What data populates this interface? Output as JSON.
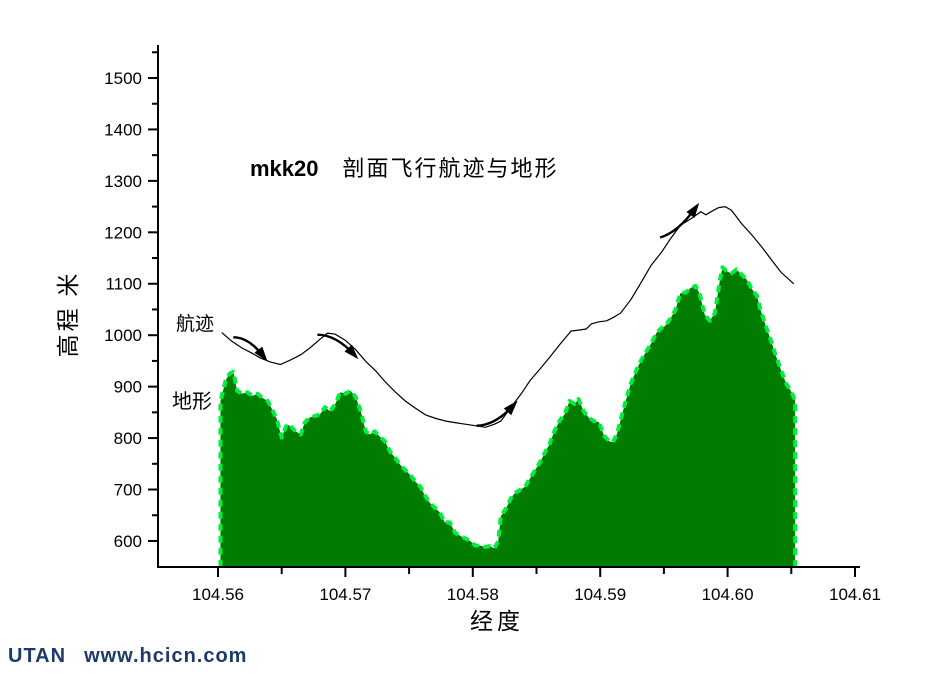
{
  "labels": {
    "title_id": "mkk20",
    "title_text": "剖面飞行航迹与地形",
    "y_axis": "高程 米",
    "x_axis": "经度",
    "series_path": "航迹",
    "series_terrain": "地形"
  },
  "watermark": {
    "brand": "UTAN",
    "url": "www.hcicn.com",
    "color": "#1d3a6b"
  },
  "chart_data": {
    "type": "area",
    "title": "mkk20 剖面飞行航迹与地形",
    "xlabel": "经度",
    "ylabel": "高程 米",
    "xlim": [
      104.555,
      104.611
    ],
    "ylim": [
      550,
      1560
    ],
    "grid": false,
    "legend": "none (inline text labels 航迹 / 地形)",
    "x_ticks": {
      "major": [
        104.56,
        104.57,
        104.58,
        104.59,
        104.6,
        104.61
      ],
      "major_labels": [
        "104.56",
        "104.57",
        "104.58",
        "104.59",
        "104.60",
        "104.61"
      ],
      "minor": [
        104.565,
        104.575,
        104.585,
        104.595,
        104.605
      ]
    },
    "y_ticks": {
      "major": [
        600,
        700,
        800,
        900,
        1000,
        1100,
        1200,
        1300,
        1400,
        1500
      ],
      "major_labels": [
        "600",
        "700",
        "800",
        "900",
        "1000",
        "1100",
        "1200",
        "1300",
        "1400",
        "1500"
      ],
      "minor": [
        650,
        750,
        850,
        950,
        1050,
        1150,
        1250,
        1350,
        1450,
        1550
      ]
    },
    "colors": {
      "terrain_fill": "#007c00",
      "terrain_edge": "#00ee3e",
      "path_line": "#000000",
      "axis": "#000000"
    },
    "series": [
      {
        "name": "地形",
        "type": "area",
        "baseline": 550,
        "edge_style": "dashed",
        "points": [
          [
            104.5602,
            872
          ],
          [
            104.5606,
            912
          ],
          [
            104.5609,
            925
          ],
          [
            104.5612,
            929
          ],
          [
            104.5615,
            892
          ],
          [
            104.5619,
            886
          ],
          [
            104.5623,
            889
          ],
          [
            104.5627,
            882
          ],
          [
            104.5631,
            886
          ],
          [
            104.5635,
            878
          ],
          [
            104.5639,
            872
          ],
          [
            104.5642,
            858
          ],
          [
            104.5646,
            838
          ],
          [
            104.565,
            801
          ],
          [
            104.5654,
            827
          ],
          [
            104.5657,
            823
          ],
          [
            104.5661,
            813
          ],
          [
            104.5665,
            807
          ],
          [
            104.5668,
            830
          ],
          [
            104.5672,
            840
          ],
          [
            104.5676,
            843
          ],
          [
            104.568,
            846
          ],
          [
            104.5684,
            860
          ],
          [
            104.5688,
            852
          ],
          [
            104.5692,
            866
          ],
          [
            104.5696,
            889
          ],
          [
            104.57,
            886
          ],
          [
            104.5704,
            892
          ],
          [
            104.5708,
            880
          ],
          [
            104.5712,
            852
          ],
          [
            104.5716,
            813
          ],
          [
            104.5719,
            807
          ],
          [
            104.5723,
            813
          ],
          [
            104.5727,
            803
          ],
          [
            104.5731,
            794
          ],
          [
            104.5735,
            774
          ],
          [
            104.5739,
            762
          ],
          [
            104.5743,
            748
          ],
          [
            104.5747,
            738
          ],
          [
            104.5751,
            728
          ],
          [
            104.5755,
            715
          ],
          [
            104.5759,
            705
          ],
          [
            104.5762,
            690
          ],
          [
            104.5766,
            675
          ],
          [
            104.577,
            665
          ],
          [
            104.5774,
            656
          ],
          [
            104.5778,
            636
          ],
          [
            104.5782,
            636
          ],
          [
            104.5786,
            616
          ],
          [
            104.579,
            610
          ],
          [
            104.5794,
            605
          ],
          [
            104.5798,
            600
          ],
          [
            104.5802,
            591
          ],
          [
            104.5806,
            591
          ],
          [
            104.581,
            588
          ],
          [
            104.5813,
            590
          ],
          [
            104.5817,
            586
          ],
          [
            104.582,
            600
          ],
          [
            104.5822,
            648
          ],
          [
            104.5826,
            663
          ],
          [
            104.583,
            683
          ],
          [
            104.5833,
            693
          ],
          [
            104.5837,
            699
          ],
          [
            104.5841,
            705
          ],
          [
            104.5845,
            722
          ],
          [
            104.5849,
            738
          ],
          [
            104.5853,
            754
          ],
          [
            104.5857,
            774
          ],
          [
            104.586,
            787
          ],
          [
            104.5864,
            813
          ],
          [
            104.5868,
            833
          ],
          [
            104.5872,
            846
          ],
          [
            104.5876,
            872
          ],
          [
            104.588,
            866
          ],
          [
            104.5883,
            876
          ],
          [
            104.5887,
            852
          ],
          [
            104.5891,
            840
          ],
          [
            104.5895,
            833
          ],
          [
            104.5899,
            831
          ],
          [
            104.5903,
            805
          ],
          [
            104.5907,
            794
          ],
          [
            104.591,
            792
          ],
          [
            104.5913,
            807
          ],
          [
            104.5916,
            835
          ],
          [
            104.592,
            872
          ],
          [
            104.5924,
            906
          ],
          [
            104.5928,
            930
          ],
          [
            104.5932,
            951
          ],
          [
            104.5936,
            968
          ],
          [
            104.594,
            984
          ],
          [
            104.5944,
            1004
          ],
          [
            104.5948,
            1014
          ],
          [
            104.5951,
            1018
          ],
          [
            104.5955,
            1032
          ],
          [
            104.5959,
            1049
          ],
          [
            104.5963,
            1082
          ],
          [
            104.5967,
            1083
          ],
          [
            104.5971,
            1092
          ],
          [
            104.5975,
            1096
          ],
          [
            104.5978,
            1080
          ],
          [
            104.5982,
            1040
          ],
          [
            104.5986,
            1028
          ],
          [
            104.599,
            1043
          ],
          [
            104.5994,
            1108
          ],
          [
            104.5996,
            1132
          ],
          [
            104.5999,
            1125
          ],
          [
            104.6003,
            1120
          ],
          [
            104.6007,
            1128
          ],
          [
            104.6011,
            1118
          ],
          [
            104.6015,
            1108
          ],
          [
            104.6019,
            1090
          ],
          [
            104.6023,
            1077
          ],
          [
            104.6026,
            1048
          ],
          [
            104.603,
            1018
          ],
          [
            104.6034,
            990
          ],
          [
            104.6038,
            959
          ],
          [
            104.6042,
            932
          ],
          [
            104.6046,
            906
          ],
          [
            104.605,
            890
          ],
          [
            104.6053,
            873
          ]
        ]
      },
      {
        "name": "航迹",
        "type": "line",
        "points": [
          [
            104.5603,
            1005
          ],
          [
            104.5611,
            988
          ],
          [
            104.5619,
            975
          ],
          [
            104.5626,
            966
          ],
          [
            104.5633,
            956
          ],
          [
            104.5641,
            948
          ],
          [
            104.5649,
            943
          ],
          [
            104.5657,
            952
          ],
          [
            104.5665,
            962
          ],
          [
            104.5672,
            975
          ],
          [
            104.568,
            992
          ],
          [
            104.5686,
            1004
          ],
          [
            104.5692,
            1002
          ],
          [
            104.57,
            990
          ],
          [
            104.5708,
            972
          ],
          [
            104.5716,
            949
          ],
          [
            104.5724,
            930
          ],
          [
            104.5731,
            910
          ],
          [
            104.5739,
            890
          ],
          [
            104.5747,
            872
          ],
          [
            104.5755,
            858
          ],
          [
            104.5763,
            845
          ],
          [
            104.5771,
            838
          ],
          [
            104.5779,
            833
          ],
          [
            104.5786,
            830
          ],
          [
            104.5794,
            827
          ],
          [
            104.5802,
            824
          ],
          [
            104.581,
            821
          ],
          [
            104.5817,
            827
          ],
          [
            104.5822,
            833
          ],
          [
            104.583,
            860
          ],
          [
            104.5838,
            886
          ],
          [
            104.5845,
            912
          ],
          [
            104.5853,
            935
          ],
          [
            104.5861,
            959
          ],
          [
            104.5869,
            984
          ],
          [
            104.5875,
            1002
          ],
          [
            104.5877,
            1008
          ],
          [
            104.5883,
            1010
          ],
          [
            104.5889,
            1012
          ],
          [
            104.5893,
            1022
          ],
          [
            104.5899,
            1026
          ],
          [
            104.5905,
            1028
          ],
          [
            104.591,
            1034
          ],
          [
            104.5916,
            1043
          ],
          [
            104.5924,
            1069
          ],
          [
            104.5932,
            1102
          ],
          [
            104.594,
            1136
          ],
          [
            104.5948,
            1161
          ],
          [
            104.5955,
            1187
          ],
          [
            104.5963,
            1214
          ],
          [
            104.5971,
            1226
          ],
          [
            104.5979,
            1240
          ],
          [
            104.5983,
            1234
          ],
          [
            104.5987,
            1240
          ],
          [
            104.5993,
            1248
          ],
          [
            104.5998,
            1250
          ],
          [
            104.6003,
            1243
          ],
          [
            104.6007,
            1230
          ],
          [
            104.6011,
            1217
          ],
          [
            104.6019,
            1195
          ],
          [
            104.6027,
            1171
          ],
          [
            104.6034,
            1148
          ],
          [
            104.6042,
            1122
          ],
          [
            104.6052,
            1100
          ]
        ]
      }
    ],
    "annotations": {
      "series_labels": [
        {
          "text": "航迹",
          "x": 104.5576,
          "y": 1008
        },
        {
          "text": "地形",
          "x": 104.5572,
          "y": 862
        }
      ],
      "arrows": [
        {
          "tail": [
            104.5612,
            996
          ],
          "head": [
            104.5636,
            958
          ],
          "curve": "up"
        },
        {
          "tail": [
            104.5678,
            1001
          ],
          "head": [
            104.5707,
            962
          ],
          "curve": "up"
        },
        {
          "tail": [
            104.5803,
            824
          ],
          "head": [
            104.5832,
            864
          ],
          "curve": "down"
        },
        {
          "tail": [
            104.5947,
            1190
          ],
          "head": [
            104.5975,
            1248
          ],
          "curve": "down"
        }
      ]
    }
  }
}
